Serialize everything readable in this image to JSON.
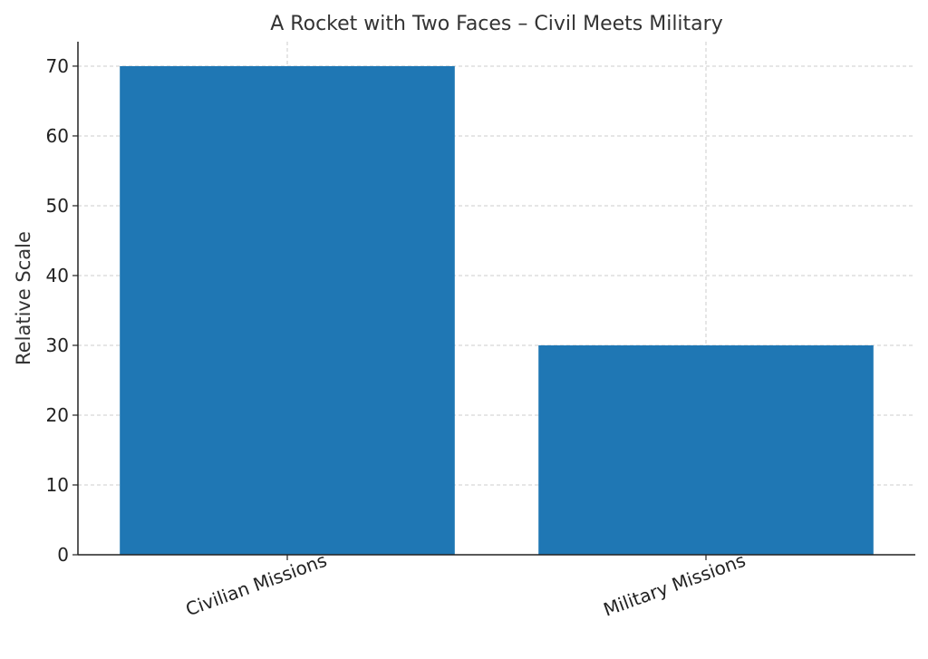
{
  "chart_data": {
    "type": "bar",
    "title": "A Rocket with Two Faces – Civil Meets Military",
    "xlabel": "",
    "ylabel": "Relative Scale",
    "categories": [
      "Civilian Missions",
      "Military Missions"
    ],
    "values": [
      70,
      30
    ],
    "yticks": [
      0,
      10,
      20,
      30,
      40,
      50,
      60,
      70
    ],
    "ylim": [
      0,
      73.5
    ],
    "grid": true,
    "bar_color": "#1f77b4",
    "xtick_rotation_deg": -20
  }
}
